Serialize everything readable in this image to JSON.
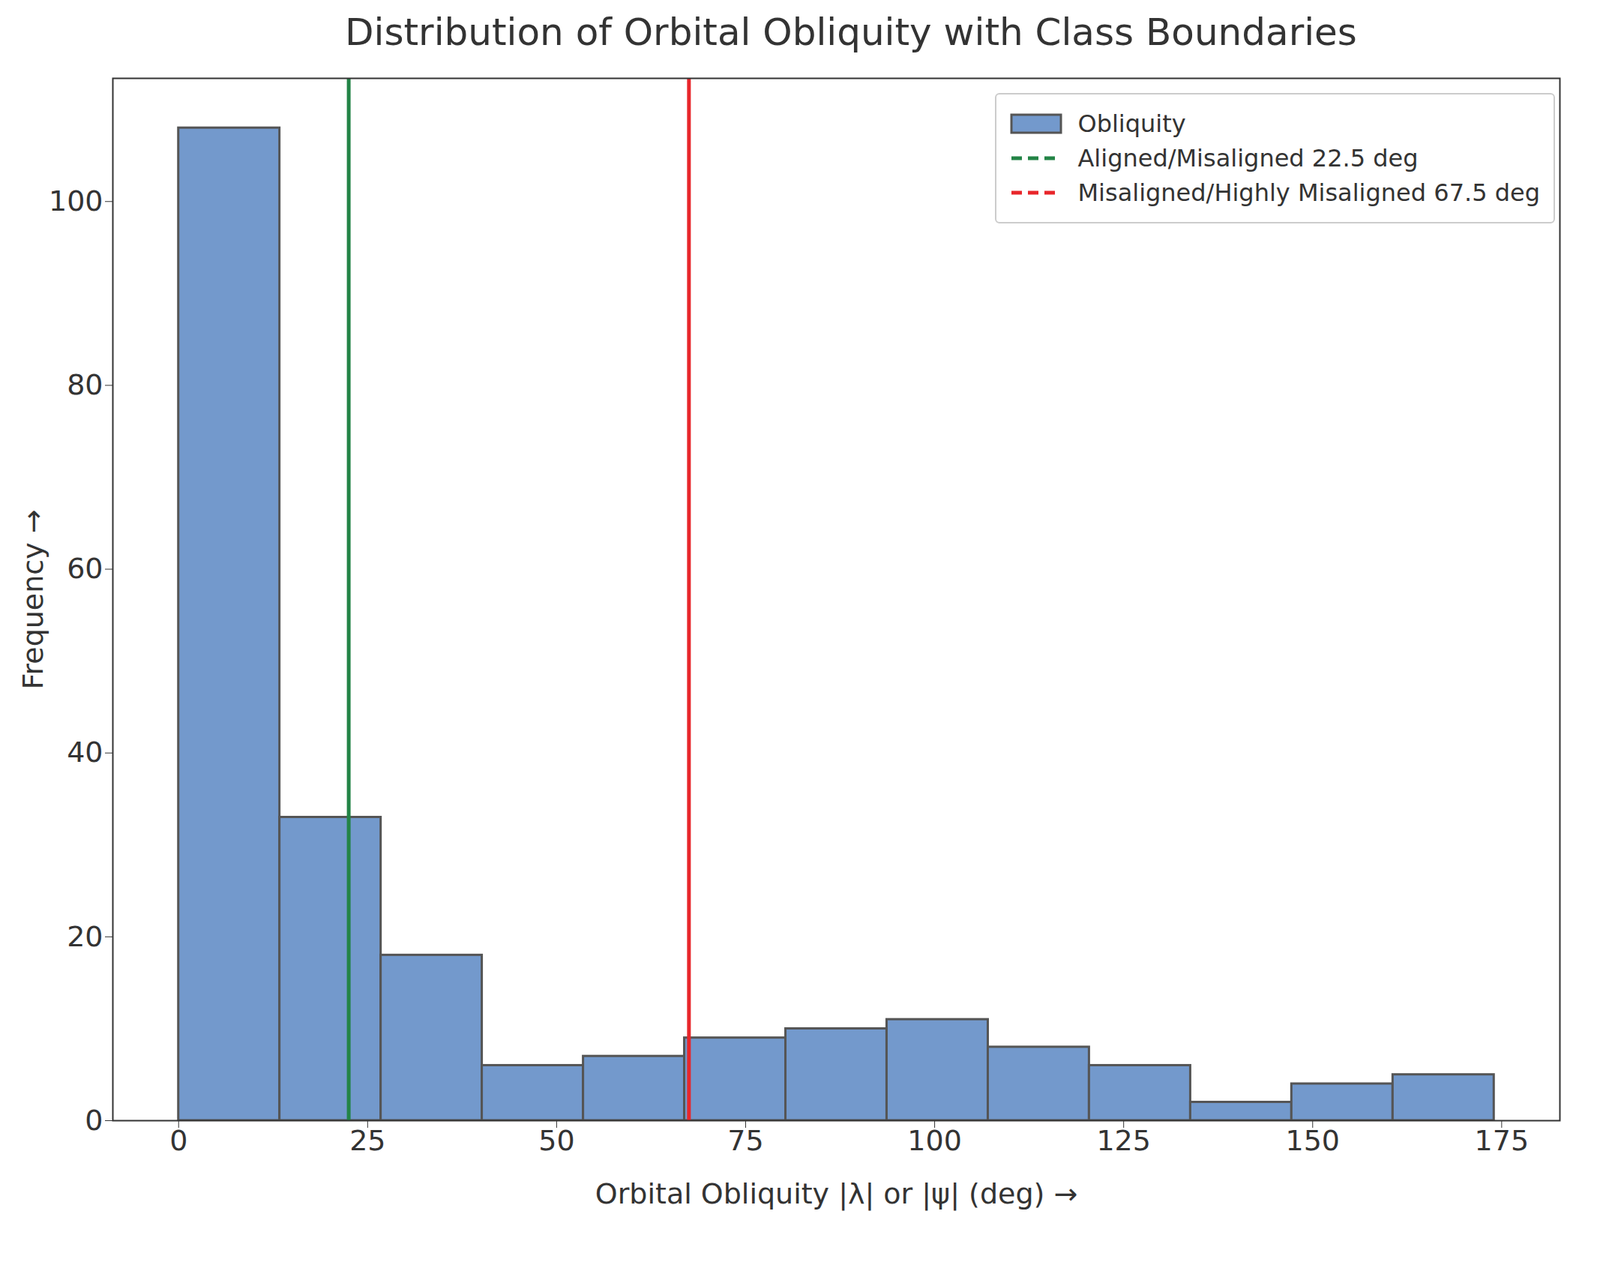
{
  "chart_data": {
    "type": "histogram",
    "title": "Distribution of Orbital Obliquity with Class Boundaries",
    "x_label": "Orbital Obliquity |λ| or |ψ| (deg)",
    "y_label": "Frequency",
    "name": "Obliquity",
    "color": "#7399cc",
    "bins": [
      0,
      13.38,
      26.77,
      40.15,
      53.54,
      66.92,
      80.31,
      93.69,
      107.08,
      120.46,
      133.85,
      147.23,
      160.62,
      174.0
    ],
    "values": [
      108,
      33,
      18,
      6,
      7,
      9,
      10,
      11,
      8,
      6,
      2,
      4,
      5
    ],
    "vlines": [
      {
        "x": 22.5,
        "name": "Aligned/Misaligned 22.5 deg",
        "color": "#238446",
        "line_style": "dashed"
      },
      {
        "x": 67.5,
        "name": "Misaligned/Highly Misaligned 67.5 deg",
        "color": "#e8262b",
        "line_style": "dashed"
      }
    ],
    "xlim": [
      -8.7,
      182.7
    ],
    "ylim": [
      0,
      113.4
    ],
    "xticks": [
      0,
      25,
      50,
      75,
      100,
      125,
      150,
      175
    ],
    "yticks": [
      0,
      20,
      40,
      60,
      80,
      100
    ],
    "legend": "upper right"
  }
}
